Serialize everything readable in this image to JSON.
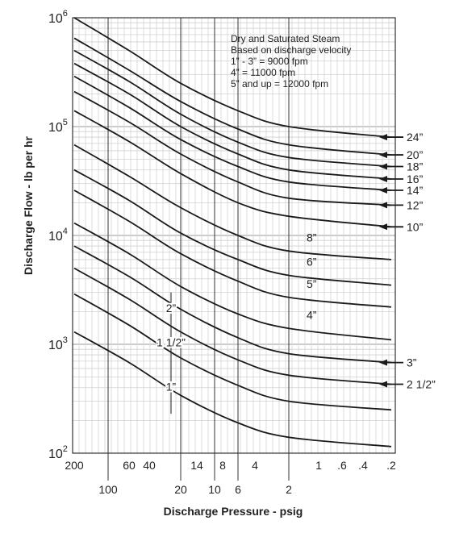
{
  "chart_data": {
    "type": "line",
    "title": "",
    "xlabel": "Discharge Pressure - psig",
    "ylabel": "Discharge Flow - lb per hr",
    "y_scale": "log",
    "ylim": [
      100,
      1000000
    ],
    "y_ticks": [
      {
        "base": "10",
        "exp": "2"
      },
      {
        "base": "10",
        "exp": "3"
      },
      {
        "base": "10",
        "exp": "4"
      },
      {
        "base": "10",
        "exp": "5"
      },
      {
        "base": "10",
        "exp": "6"
      }
    ],
    "x_ticks_top": [
      "200",
      "60",
      "40",
      "14",
      "8",
      "4",
      "1",
      ".6",
      ".4",
      ".2"
    ],
    "x_ticks_bottom": [
      "100",
      "20",
      "10",
      "6",
      "2"
    ],
    "grid": true,
    "annotation": [
      "Dry and Saturated Steam",
      "Based on discharge velocity",
      "1” - 3” = 9000 fpm",
      "4” = 11000 fpm",
      "5” and up = 12000 fpm"
    ],
    "series": [
      {
        "name": "24”",
        "points": [
          [
            200,
            1000000
          ],
          [
            60,
            500000
          ],
          [
            20,
            250000
          ],
          [
            6,
            140000
          ],
          [
            2,
            100000
          ],
          [
            0.2,
            80000
          ]
        ]
      },
      {
        "name": "20”",
        "points": [
          [
            200,
            650000
          ],
          [
            60,
            330000
          ],
          [
            20,
            170000
          ],
          [
            6,
            95000
          ],
          [
            2,
            68000
          ],
          [
            0.2,
            55000
          ]
        ]
      },
      {
        "name": "18”",
        "points": [
          [
            200,
            500000
          ],
          [
            60,
            260000
          ],
          [
            20,
            130000
          ],
          [
            6,
            72000
          ],
          [
            2,
            52000
          ],
          [
            0.2,
            43000
          ]
        ]
      },
      {
        "name": "16”",
        "points": [
          [
            200,
            380000
          ],
          [
            60,
            200000
          ],
          [
            20,
            100000
          ],
          [
            6,
            56000
          ],
          [
            2,
            40000
          ],
          [
            0.2,
            33000
          ]
        ]
      },
      {
        "name": "14”",
        "points": [
          [
            200,
            290000
          ],
          [
            60,
            150000
          ],
          [
            20,
            76000
          ],
          [
            6,
            43000
          ],
          [
            2,
            31000
          ],
          [
            0.2,
            26000
          ]
        ]
      },
      {
        "name": "12”",
        "points": [
          [
            200,
            210000
          ],
          [
            60,
            110000
          ],
          [
            20,
            56000
          ],
          [
            6,
            31000
          ],
          [
            2,
            22000
          ],
          [
            0.2,
            19000
          ]
        ]
      },
      {
        "name": "10”",
        "points": [
          [
            200,
            140000
          ],
          [
            60,
            73000
          ],
          [
            20,
            37000
          ],
          [
            6,
            20000
          ],
          [
            2,
            15000
          ],
          [
            0.2,
            12000
          ]
        ]
      },
      {
        "name": "8”",
        "points": [
          [
            200,
            68000
          ],
          [
            60,
            35000
          ],
          [
            20,
            18000
          ],
          [
            6,
            10000
          ],
          [
            2,
            7200
          ],
          [
            0.2,
            6000
          ]
        ]
      },
      {
        "name": "6”",
        "points": [
          [
            200,
            40000
          ],
          [
            60,
            21000
          ],
          [
            20,
            10500
          ],
          [
            6,
            6000
          ],
          [
            2,
            4300
          ],
          [
            0.2,
            3500
          ]
        ]
      },
      {
        "name": "5”",
        "points": [
          [
            200,
            26000
          ],
          [
            60,
            13500
          ],
          [
            20,
            6800
          ],
          [
            6,
            3800
          ],
          [
            2,
            2700
          ],
          [
            0.2,
            2200
          ]
        ]
      },
      {
        "name": "4”",
        "points": [
          [
            200,
            13000
          ],
          [
            60,
            6800
          ],
          [
            20,
            3400
          ],
          [
            6,
            1900
          ],
          [
            2,
            1400
          ],
          [
            0.2,
            1100
          ]
        ]
      },
      {
        "name": "3”",
        "points": [
          [
            200,
            8000
          ],
          [
            60,
            4200
          ],
          [
            20,
            2100
          ],
          [
            6,
            1150
          ],
          [
            2,
            820
          ],
          [
            0.2,
            680
          ]
        ]
      },
      {
        "name": "2 1/2”",
        "points": [
          [
            200,
            5000
          ],
          [
            60,
            2600
          ],
          [
            20,
            1300
          ],
          [
            6,
            720
          ],
          [
            2,
            520
          ],
          [
            0.2,
            430
          ]
        ]
      },
      {
        "name": "2”",
        "points": [
          [
            200,
            2900
          ],
          [
            60,
            1500
          ],
          [
            20,
            750
          ],
          [
            6,
            420
          ],
          [
            2,
            300
          ],
          [
            0.2,
            250
          ]
        ]
      },
      {
        "name": "1 1/2”",
        "points": [
          [
            200,
            1300
          ],
          [
            60,
            680
          ],
          [
            20,
            340
          ],
          [
            6,
            190
          ],
          [
            2,
            140
          ],
          [
            0.2,
            115
          ]
        ]
      }
    ],
    "right_labels": [
      "24”",
      "20”",
      "18”",
      "16”",
      "14”",
      "12”",
      "10”",
      "3”",
      "2 1/2”"
    ],
    "inside_labels": [
      "8”",
      "6”",
      "5”",
      "4”"
    ],
    "range_labels": [
      "2”",
      "1 1/2”",
      "1”"
    ]
  }
}
